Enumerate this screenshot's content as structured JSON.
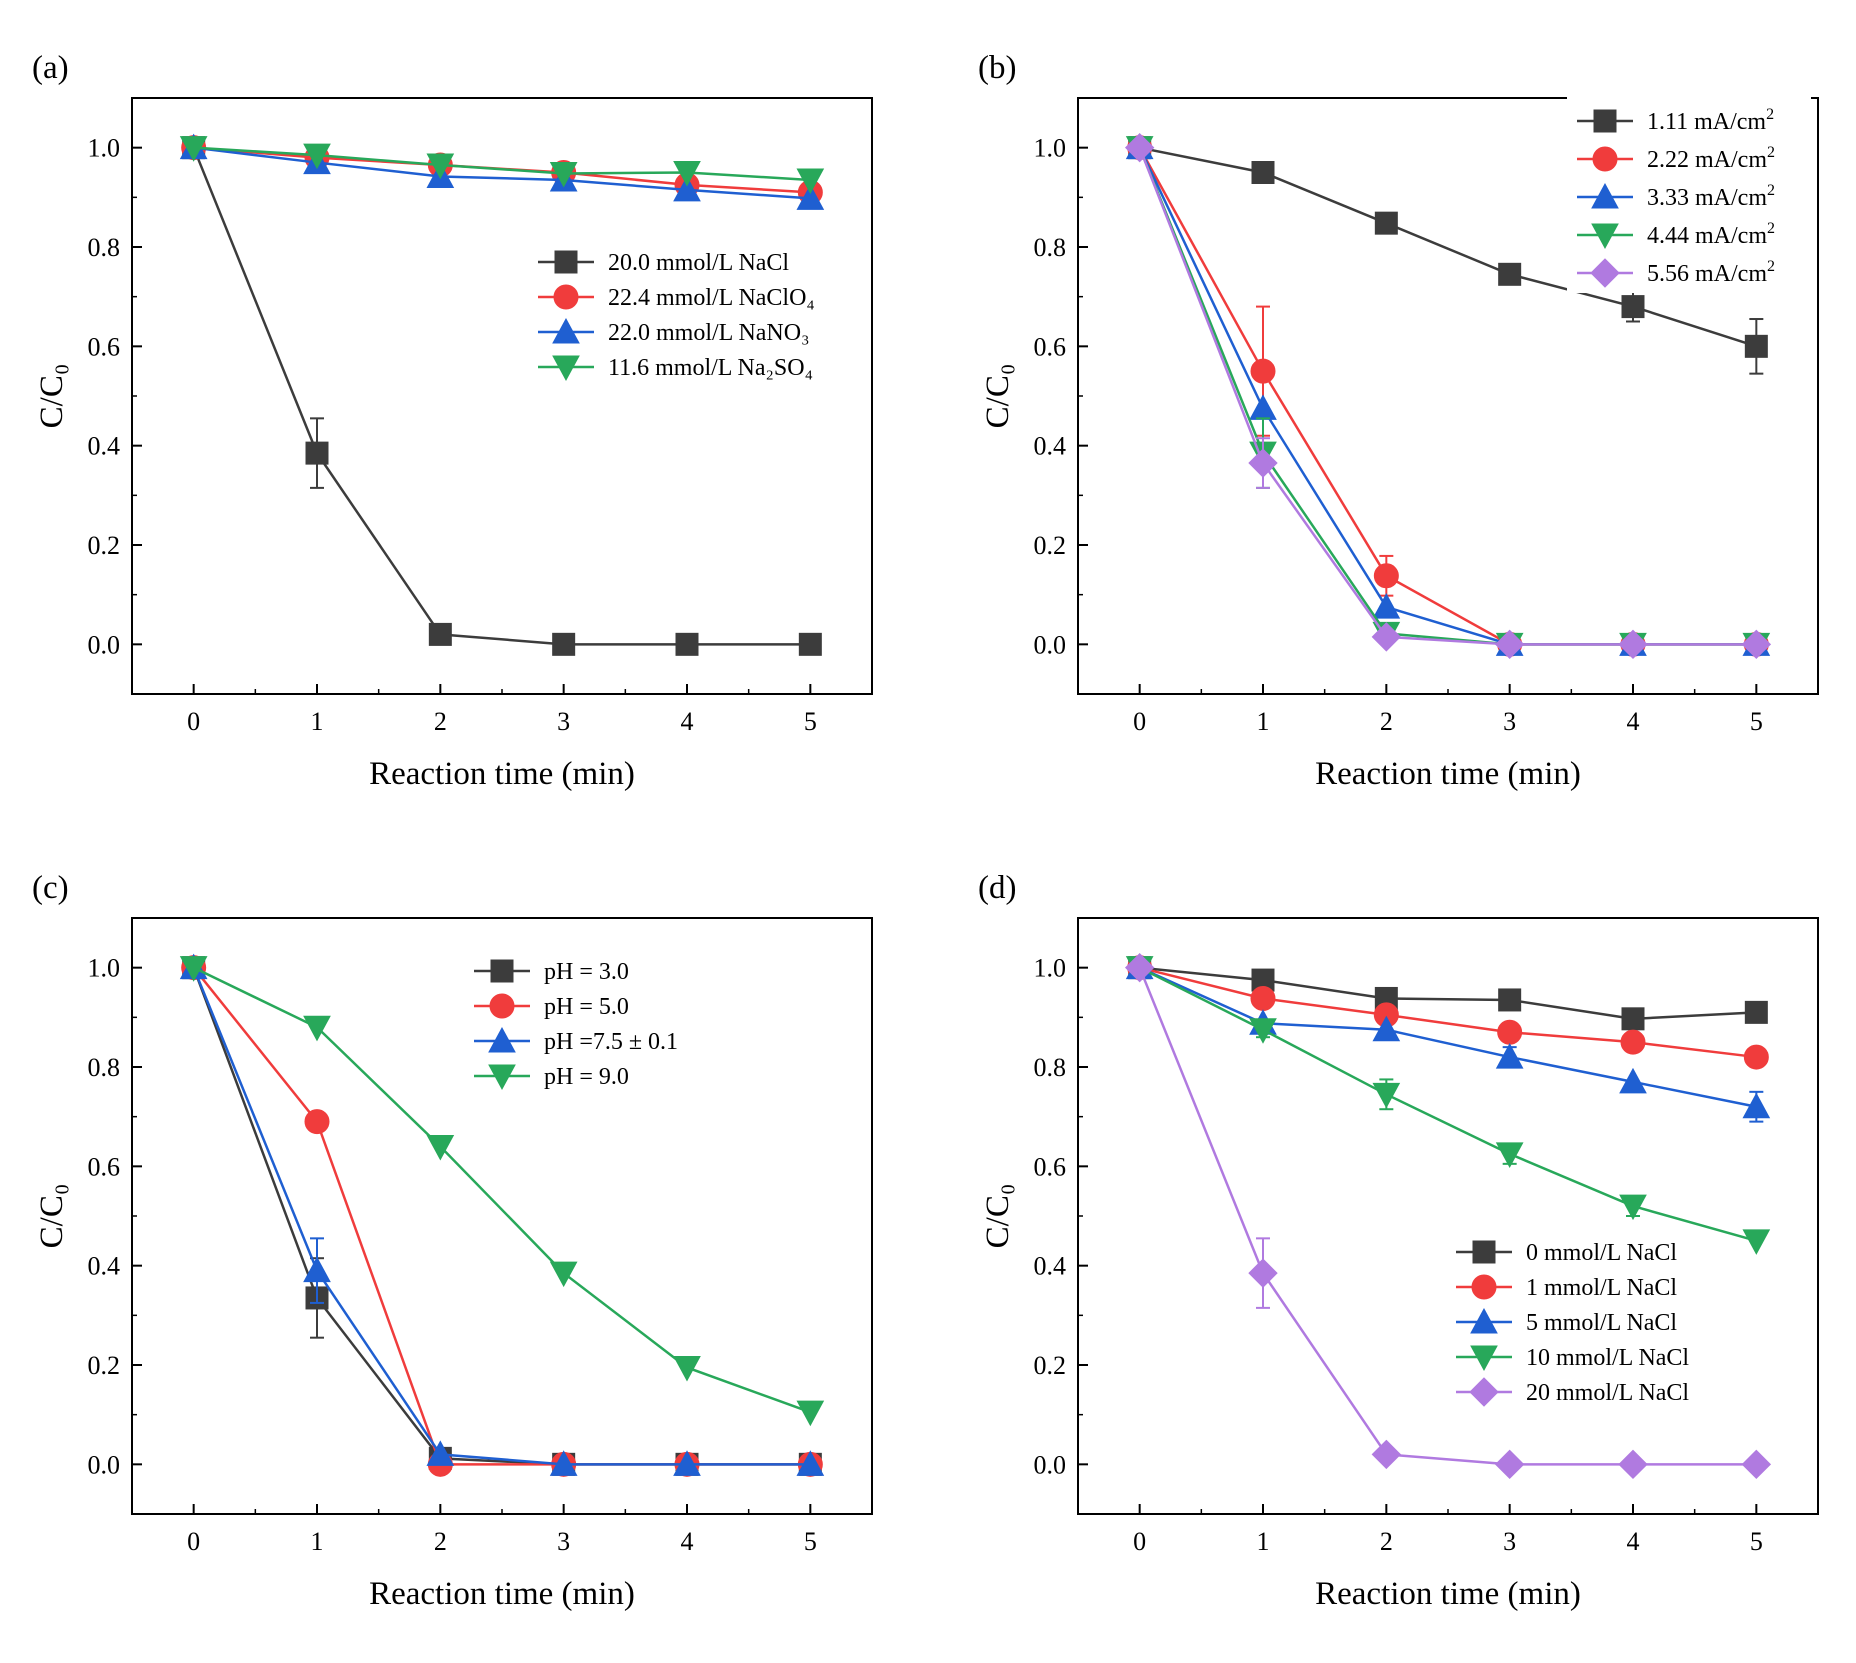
{
  "chart_data": [
    {
      "type": "line",
      "panel_label": "(a)",
      "xlabel": "Reaction time (min)",
      "ylabel": "C/C₀",
      "xlim": [
        -0.5,
        5.5
      ],
      "ylim": [
        -0.1,
        1.1
      ],
      "x_ticks": [
        0,
        1,
        2,
        3,
        4,
        5
      ],
      "y_ticks": [
        0.0,
        0.2,
        0.4,
        0.6,
        0.8,
        1.0
      ],
      "x": [
        0,
        1,
        2,
        3,
        4,
        5
      ],
      "legend_position": "center-right",
      "series": [
        {
          "name": "20.0 mmol/L NaCl",
          "color": "#3c3c3c",
          "marker": "square",
          "values": [
            1.0,
            0.385,
            0.02,
            0.0,
            0.0,
            0.0
          ],
          "errors": [
            0,
            0.07,
            0,
            0,
            0,
            0
          ]
        },
        {
          "name": "22.4 mmol/L NaClO₄",
          "color": "#f03c3c",
          "marker": "circle",
          "values": [
            1.0,
            0.98,
            0.965,
            0.95,
            0.925,
            0.91
          ],
          "errors": [
            0,
            0,
            0,
            0,
            0,
            0
          ]
        },
        {
          "name": "22.0 mmol/L NaNO₃",
          "color": "#1f5fd1",
          "marker": "triangle-up",
          "values": [
            1.0,
            0.97,
            0.942,
            0.935,
            0.915,
            0.898
          ],
          "errors": [
            0,
            0,
            0,
            0,
            0,
            0
          ]
        },
        {
          "name": "11.6 mmol/L Na₂SO₄",
          "color": "#28a85a",
          "marker": "triangle-down",
          "values": [
            1.0,
            0.985,
            0.965,
            0.948,
            0.95,
            0.935
          ],
          "errors": [
            0,
            0,
            0,
            0,
            0,
            0
          ]
        }
      ]
    },
    {
      "type": "line",
      "panel_label": "(b)",
      "xlabel": "Reaction time (min)",
      "ylabel": "C/C₀",
      "xlim": [
        -0.5,
        5.5
      ],
      "ylim": [
        -0.1,
        1.1
      ],
      "x_ticks": [
        0,
        1,
        2,
        3,
        4,
        5
      ],
      "y_ticks": [
        0.0,
        0.2,
        0.4,
        0.6,
        0.8,
        1.0
      ],
      "x": [
        0,
        1,
        2,
        3,
        4,
        5
      ],
      "legend_position": "top-right",
      "series": [
        {
          "name": "1.11 mA/cm",
          "unit_sup": "2",
          "color": "#3c3c3c",
          "marker": "square",
          "values": [
            1.0,
            0.95,
            0.848,
            0.745,
            0.68,
            0.6
          ],
          "errors": [
            0,
            0,
            0,
            0.02,
            0.03,
            0.055
          ]
        },
        {
          "name": "2.22 mA/cm",
          "unit_sup": "2",
          "color": "#f03c3c",
          "marker": "circle",
          "values": [
            1.0,
            0.55,
            0.138,
            0.0,
            0.0,
            0.0
          ],
          "errors": [
            0,
            0.13,
            0.04,
            0,
            0,
            0
          ]
        },
        {
          "name": "3.33 mA/cm",
          "unit_sup": "2",
          "color": "#1f5fd1",
          "marker": "triangle-up",
          "values": [
            1.0,
            0.475,
            0.075,
            0.0,
            0.0,
            0.0
          ],
          "errors": [
            0,
            0,
            0,
            0,
            0,
            0
          ]
        },
        {
          "name": "4.44 mA/cm",
          "unit_sup": "2",
          "color": "#28a85a",
          "marker": "triangle-down",
          "values": [
            1.0,
            0.385,
            0.022,
            0.0,
            0.0,
            0.0
          ],
          "errors": [
            0,
            0.07,
            0,
            0,
            0,
            0
          ]
        },
        {
          "name": "5.56 mA/cm",
          "unit_sup": "2",
          "color": "#b07ae0",
          "marker": "diamond",
          "values": [
            1.0,
            0.365,
            0.015,
            0.0,
            0.0,
            0.0
          ],
          "errors": [
            0,
            0.05,
            0,
            0,
            0,
            0
          ]
        }
      ]
    },
    {
      "type": "line",
      "panel_label": "(c)",
      "xlabel": "Reaction time (min)",
      "ylabel": "C/C₀",
      "xlim": [
        -0.5,
        5.5
      ],
      "ylim": [
        -0.1,
        1.1
      ],
      "x_ticks": [
        0,
        1,
        2,
        3,
        4,
        5
      ],
      "y_ticks": [
        0.0,
        0.2,
        0.4,
        0.6,
        0.8,
        1.0
      ],
      "x": [
        0,
        1,
        2,
        3,
        4,
        5
      ],
      "legend_position": "top-center",
      "series": [
        {
          "name": "pH = 3.0",
          "color": "#3c3c3c",
          "marker": "square",
          "values": [
            1.0,
            0.335,
            0.012,
            0.0,
            0.0,
            0.0
          ],
          "errors": [
            0,
            0.08,
            0,
            0,
            0,
            0
          ]
        },
        {
          "name": "pH = 5.0",
          "color": "#f03c3c",
          "marker": "circle",
          "values": [
            1.0,
            0.69,
            0.0,
            0.0,
            0.0,
            0.0
          ],
          "errors": [
            0,
            0,
            0,
            0,
            0,
            0
          ]
        },
        {
          "name": "pH =7.5 ± 0.1",
          "color": "#1f5fd1",
          "marker": "triangle-up",
          "values": [
            1.0,
            0.39,
            0.02,
            0.0,
            0.0,
            0.0
          ],
          "errors": [
            0,
            0.065,
            0,
            0,
            0,
            0
          ]
        },
        {
          "name": "pH = 9.0",
          "color": "#28a85a",
          "marker": "triangle-down",
          "values": [
            1.0,
            0.88,
            0.64,
            0.385,
            0.195,
            0.105
          ],
          "errors": [
            0,
            0,
            0,
            0,
            0,
            0
          ]
        }
      ]
    },
    {
      "type": "line",
      "panel_label": "(d)",
      "xlabel": "Reaction time (min)",
      "ylabel": "C/C₀",
      "xlim": [
        -0.5,
        5.5
      ],
      "ylim": [
        -0.1,
        1.1
      ],
      "x_ticks": [
        0,
        1,
        2,
        3,
        4,
        5
      ],
      "y_ticks": [
        0.0,
        0.2,
        0.4,
        0.6,
        0.8,
        1.0
      ],
      "x": [
        0,
        1,
        2,
        3,
        4,
        5
      ],
      "legend_position": "bottom-right",
      "series": [
        {
          "name": "0 mmol/L NaCl",
          "color": "#3c3c3c",
          "marker": "square",
          "values": [
            1.0,
            0.975,
            0.938,
            0.935,
            0.897,
            0.91
          ],
          "errors": [
            0,
            0,
            0,
            0,
            0,
            0
          ]
        },
        {
          "name": "1 mmol/L NaCl",
          "color": "#f03c3c",
          "marker": "circle",
          "values": [
            1.0,
            0.938,
            0.905,
            0.87,
            0.85,
            0.82
          ],
          "errors": [
            0,
            0,
            0,
            0,
            0,
            0
          ]
        },
        {
          "name": "5 mmol/L NaCl",
          "color": "#1f5fd1",
          "marker": "triangle-up",
          "values": [
            1.0,
            0.888,
            0.875,
            0.82,
            0.77,
            0.72
          ],
          "errors": [
            0,
            0,
            0,
            0.02,
            0,
            0.03
          ]
        },
        {
          "name": "10 mmol/L NaCl",
          "color": "#28a85a",
          "marker": "triangle-down",
          "values": [
            1.0,
            0.875,
            0.745,
            0.625,
            0.52,
            0.45
          ],
          "errors": [
            0,
            0.015,
            0.03,
            0.02,
            0.02,
            0
          ]
        },
        {
          "name": "20 mmol/L NaCl",
          "color": "#b07ae0",
          "marker": "diamond",
          "values": [
            1.0,
            0.385,
            0.02,
            0.0,
            0.0,
            0.0
          ],
          "errors": [
            0,
            0.07,
            0,
            0,
            0,
            0
          ]
        }
      ]
    }
  ]
}
